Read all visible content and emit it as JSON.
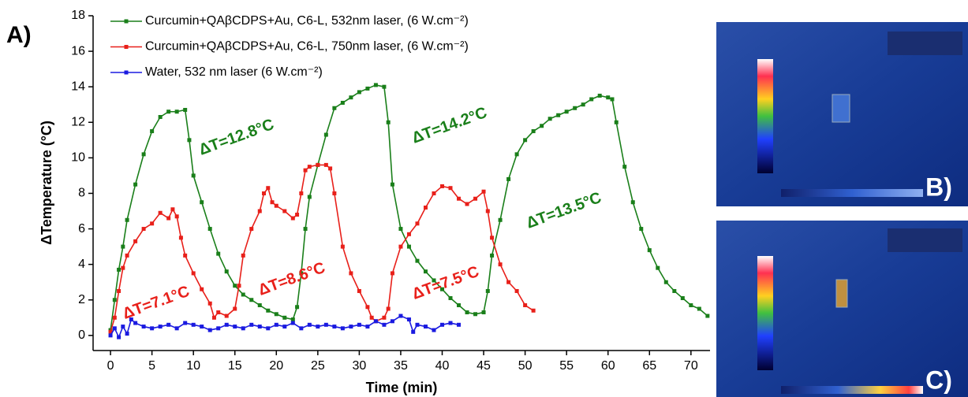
{
  "chart_data": {
    "type": "line",
    "panel_label": "A)",
    "xlabel": "Time (min)",
    "ylabel": "ΔTemperature (°C)",
    "xlim": [
      -2.1,
      72.3
    ],
    "ylim": [
      -0.85,
      18
    ],
    "xticks": [
      0,
      5,
      10,
      15,
      20,
      25,
      30,
      35,
      40,
      45,
      50,
      55,
      60,
      65,
      70
    ],
    "yticks": [
      0,
      2,
      4,
      6,
      8,
      10,
      12,
      14,
      16,
      18
    ],
    "legend": "upper left",
    "series": [
      {
        "name": "Curcumin+QAβCDPS+Au, C6-L, 532nm laser, (6 W.cm⁻²)",
        "color": "#1a7f1a",
        "x": [
          0,
          0.5,
          1,
          1.5,
          2,
          3,
          4,
          5,
          6,
          7,
          8,
          9,
          9.5,
          10,
          11,
          12,
          13,
          14,
          15,
          16,
          17,
          18,
          19,
          20,
          21,
          22,
          22.5,
          23,
          23.5,
          24,
          25,
          26,
          27,
          28,
          29,
          30,
          31,
          32,
          33,
          33.5,
          34,
          35,
          36,
          37,
          38,
          39,
          40,
          41,
          42,
          43,
          44,
          45,
          45.5,
          46,
          47,
          48,
          49,
          50,
          51,
          52,
          53,
          54,
          55,
          56,
          57,
          58,
          59,
          60,
          60.5,
          61,
          62,
          63,
          64,
          65,
          66,
          67,
          68,
          69,
          70,
          71,
          72
        ],
        "values": [
          0.3,
          2,
          3.7,
          5,
          6.5,
          8.5,
          10.2,
          11.5,
          12.3,
          12.6,
          12.6,
          12.7,
          11,
          9,
          7.5,
          6,
          4.6,
          3.6,
          2.8,
          2.3,
          2,
          1.7,
          1.4,
          1.2,
          1,
          0.9,
          1.6,
          3.5,
          6,
          7.8,
          9.6,
          11.3,
          12.8,
          13.1,
          13.4,
          13.7,
          13.9,
          14.1,
          14,
          12,
          8.5,
          6,
          5,
          4.2,
          3.6,
          3.1,
          2.6,
          2.1,
          1.7,
          1.3,
          1.2,
          1.3,
          2.5,
          4.5,
          6.5,
          8.8,
          10.2,
          11,
          11.5,
          11.8,
          12.2,
          12.4,
          12.6,
          12.8,
          13,
          13.3,
          13.5,
          13.4,
          13.3,
          12,
          9.5,
          7.5,
          6,
          4.8,
          3.8,
          3,
          2.5,
          2.1,
          1.7,
          1.5,
          1.1
        ]
      },
      {
        "name": "Curcumin+QAβCDPS+Au, C6-L, 750nm laser, (6 W.cm⁻²)",
        "color": "#e8201a",
        "x": [
          0,
          0.5,
          1,
          1.5,
          2,
          3,
          4,
          5,
          6,
          7,
          7.5,
          8,
          8.5,
          9,
          10,
          11,
          12,
          12.5,
          13,
          14,
          15,
          15.5,
          16,
          17,
          18,
          18.5,
          19,
          19.5,
          20,
          21,
          22,
          22.5,
          23,
          23.5,
          24,
          25,
          26,
          26.5,
          27,
          28,
          29,
          30,
          31,
          31.5,
          32,
          33,
          33.5,
          34,
          35,
          36,
          37,
          38,
          39,
          40,
          41,
          42,
          43,
          44,
          45,
          45.5,
          46,
          47,
          48,
          49,
          50,
          51
        ],
        "values": [
          0.2,
          1,
          2.5,
          3.8,
          4.5,
          5.3,
          6,
          6.3,
          6.9,
          6.6,
          7.1,
          6.7,
          5.5,
          4.5,
          3.5,
          2.6,
          1.8,
          1,
          1.3,
          1.1,
          1.5,
          2.8,
          4.5,
          6,
          7,
          8,
          8.3,
          7.5,
          7.3,
          7,
          6.6,
          6.8,
          8,
          9.3,
          9.5,
          9.6,
          9.6,
          9.4,
          8,
          5,
          3.5,
          2.5,
          1.6,
          1,
          0.8,
          1,
          1.5,
          3.5,
          5,
          5.7,
          6.3,
          7.2,
          8,
          8.4,
          8.3,
          7.7,
          7.4,
          7.7,
          8.1,
          7,
          5.5,
          4,
          3,
          2.5,
          1.7,
          1.4
        ]
      },
      {
        "name": "Water, 532 nm laser (6 W.cm⁻²)",
        "color": "#1a1ae0",
        "x": [
          0,
          0.5,
          1,
          1.5,
          2,
          2.5,
          3,
          4,
          5,
          6,
          7,
          8,
          9,
          10,
          11,
          12,
          13,
          14,
          15,
          16,
          17,
          18,
          19,
          20,
          21,
          22,
          23,
          24,
          25,
          26,
          27,
          28,
          29,
          30,
          31,
          32,
          33,
          34,
          35,
          36,
          36.5,
          37,
          38,
          39,
          40,
          41,
          42
        ],
        "values": [
          0,
          0.4,
          -0.1,
          0.5,
          0.1,
          0.9,
          0.7,
          0.5,
          0.4,
          0.5,
          0.6,
          0.4,
          0.7,
          0.6,
          0.5,
          0.3,
          0.4,
          0.6,
          0.5,
          0.4,
          0.6,
          0.5,
          0.4,
          0.6,
          0.5,
          0.7,
          0.4,
          0.6,
          0.5,
          0.6,
          0.5,
          0.4,
          0.5,
          0.6,
          0.5,
          0.8,
          0.6,
          0.8,
          1.1,
          0.9,
          0.2,
          0.6,
          0.5,
          0.3,
          0.6,
          0.7,
          0.6
        ]
      }
    ],
    "annotations": [
      {
        "text": "ΔT=12.8°C",
        "color": "#1a7f1a"
      },
      {
        "text": "ΔT=14.2°C",
        "color": "#1a7f1a"
      },
      {
        "text": "ΔT=13.5°C",
        "color": "#1a7f1a"
      },
      {
        "text": "ΔT=7.1°C",
        "color": "#e8201a"
      },
      {
        "text": "ΔT=8.6°C",
        "color": "#e8201a"
      },
      {
        "text": "ΔT=7.5°C",
        "color": "#e8201a"
      }
    ],
    "image_labels": [
      "B)",
      "C)"
    ]
  }
}
